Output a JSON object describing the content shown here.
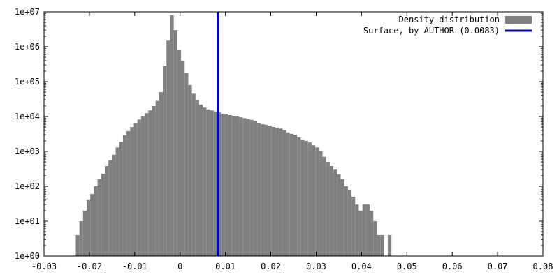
{
  "chart_data": {
    "type": "bar",
    "title": "",
    "xlabel": "",
    "ylabel": "",
    "x_range": [
      -0.03,
      0.08
    ],
    "y_range": [
      1,
      10000000
    ],
    "y_scale": "log",
    "grid": false,
    "legend_position": "top-right",
    "x_ticks": [
      "-0.03",
      "-0.02",
      "-0.01",
      "0",
      "0.01",
      "0.02",
      "0.03",
      "0.04",
      "0.05",
      "0.06",
      "0.07",
      "0.08"
    ],
    "y_ticks": [
      "1e+00",
      "1e+01",
      "1e+02",
      "1e+03",
      "1e+04",
      "1e+05",
      "1e+06",
      "1e+07"
    ],
    "bin_width": 0.0008,
    "series": [
      {
        "name": "Density distribution",
        "color": "#808080",
        "x": [
          -0.0226,
          -0.0218,
          -0.021,
          -0.0202,
          -0.0194,
          -0.0186,
          -0.0178,
          -0.017,
          -0.0162,
          -0.0154,
          -0.0146,
          -0.0138,
          -0.013,
          -0.0122,
          -0.0114,
          -0.0106,
          -0.0098,
          -0.009,
          -0.0082,
          -0.0074,
          -0.0066,
          -0.0058,
          -0.005,
          -0.0042,
          -0.0034,
          -0.0026,
          -0.0018,
          -0.001,
          -0.0002,
          0.0006,
          0.0014,
          0.0022,
          0.003,
          0.0038,
          0.0046,
          0.0054,
          0.0062,
          0.007,
          0.0078,
          0.0086,
          0.0094,
          0.0102,
          0.011,
          0.0118,
          0.0126,
          0.0134,
          0.0142,
          0.015,
          0.0158,
          0.0166,
          0.0174,
          0.0182,
          0.019,
          0.0198,
          0.0206,
          0.0214,
          0.0222,
          0.023,
          0.0238,
          0.0246,
          0.0254,
          0.0262,
          0.027,
          0.0278,
          0.0286,
          0.0294,
          0.0302,
          0.031,
          0.0318,
          0.0326,
          0.0334,
          0.0342,
          0.035,
          0.0358,
          0.0366,
          0.0374,
          0.0382,
          0.039,
          0.0398,
          0.0406,
          0.0414,
          0.0422,
          0.043,
          0.0438,
          0.0446,
          0.0454,
          0.0462
        ],
        "values": [
          4,
          10,
          20,
          40,
          60,
          100,
          160,
          230,
          380,
          560,
          800,
          1300,
          1900,
          2900,
          3800,
          5000,
          6500,
          8200,
          10000,
          12500,
          15000,
          20000,
          28000,
          50000,
          280000,
          1500000,
          8000000,
          3000000,
          800000,
          400000,
          180000,
          80000,
          45000,
          30000,
          22000,
          18000,
          16000,
          15000,
          14000,
          13000,
          12000,
          11500,
          11000,
          10500,
          10000,
          9500,
          9000,
          8500,
          8000,
          7500,
          6500,
          6000,
          5800,
          5500,
          5000,
          4800,
          4500,
          4000,
          3500,
          3200,
          3000,
          2500,
          2200,
          2000,
          1800,
          1500,
          1300,
          1000,
          700,
          500,
          380,
          300,
          220,
          160,
          100,
          80,
          50,
          30,
          20,
          30,
          30,
          20,
          10,
          4,
          4,
          0,
          4
        ]
      },
      {
        "name": "Surface, by AUTHOR (0.0083)",
        "color": "#0000cc",
        "x": [
          0.0083
        ]
      }
    ]
  }
}
